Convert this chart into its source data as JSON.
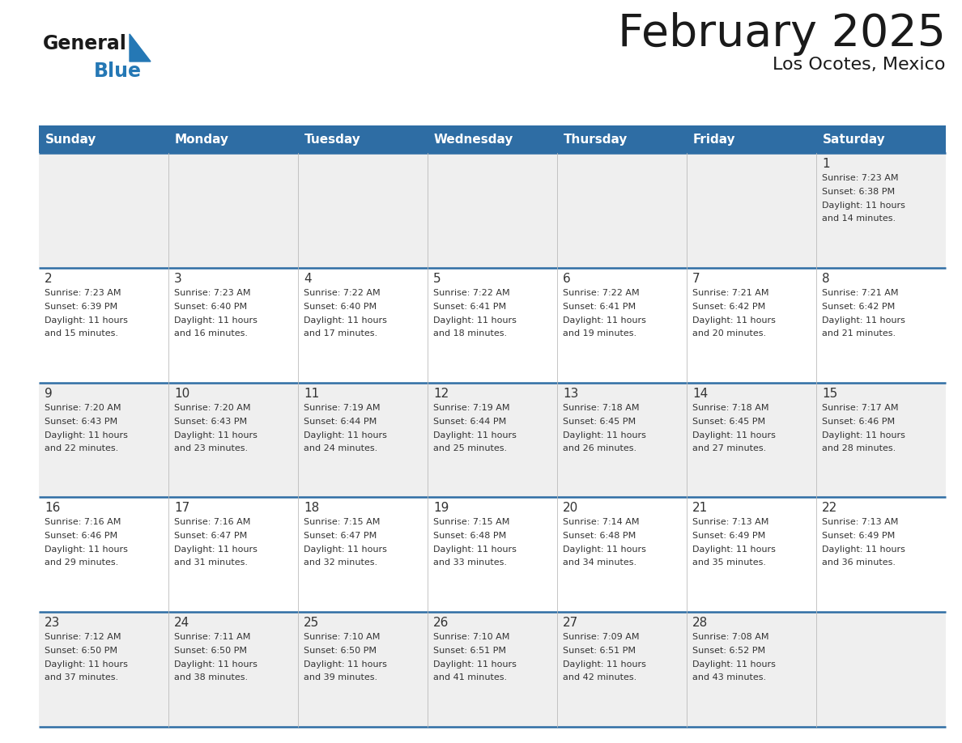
{
  "title": "February 2025",
  "subtitle": "Los Ocotes, Mexico",
  "days_of_week": [
    "Sunday",
    "Monday",
    "Tuesday",
    "Wednesday",
    "Thursday",
    "Friday",
    "Saturday"
  ],
  "header_bg": "#2E6DA4",
  "header_text": "#FFFFFF",
  "cell_bg_light": "#EFEFEF",
  "cell_bg_white": "#FFFFFF",
  "divider_color": "#2E6DA4",
  "text_color": "#333333",
  "title_color": "#1a1a1a",
  "logo_general_color": "#1a1a1a",
  "logo_blue_color": "#2578B5",
  "calendar_data": [
    [
      null,
      null,
      null,
      null,
      null,
      null,
      {
        "day": 1,
        "sunrise": "7:23 AM",
        "sunset": "6:38 PM",
        "daylight": "11 hours and 14 minutes."
      }
    ],
    [
      {
        "day": 2,
        "sunrise": "7:23 AM",
        "sunset": "6:39 PM",
        "daylight": "11 hours and 15 minutes."
      },
      {
        "day": 3,
        "sunrise": "7:23 AM",
        "sunset": "6:40 PM",
        "daylight": "11 hours and 16 minutes."
      },
      {
        "day": 4,
        "sunrise": "7:22 AM",
        "sunset": "6:40 PM",
        "daylight": "11 hours and 17 minutes."
      },
      {
        "day": 5,
        "sunrise": "7:22 AM",
        "sunset": "6:41 PM",
        "daylight": "11 hours and 18 minutes."
      },
      {
        "day": 6,
        "sunrise": "7:22 AM",
        "sunset": "6:41 PM",
        "daylight": "11 hours and 19 minutes."
      },
      {
        "day": 7,
        "sunrise": "7:21 AM",
        "sunset": "6:42 PM",
        "daylight": "11 hours and 20 minutes."
      },
      {
        "day": 8,
        "sunrise": "7:21 AM",
        "sunset": "6:42 PM",
        "daylight": "11 hours and 21 minutes."
      }
    ],
    [
      {
        "day": 9,
        "sunrise": "7:20 AM",
        "sunset": "6:43 PM",
        "daylight": "11 hours and 22 minutes."
      },
      {
        "day": 10,
        "sunrise": "7:20 AM",
        "sunset": "6:43 PM",
        "daylight": "11 hours and 23 minutes."
      },
      {
        "day": 11,
        "sunrise": "7:19 AM",
        "sunset": "6:44 PM",
        "daylight": "11 hours and 24 minutes."
      },
      {
        "day": 12,
        "sunrise": "7:19 AM",
        "sunset": "6:44 PM",
        "daylight": "11 hours and 25 minutes."
      },
      {
        "day": 13,
        "sunrise": "7:18 AM",
        "sunset": "6:45 PM",
        "daylight": "11 hours and 26 minutes."
      },
      {
        "day": 14,
        "sunrise": "7:18 AM",
        "sunset": "6:45 PM",
        "daylight": "11 hours and 27 minutes."
      },
      {
        "day": 15,
        "sunrise": "7:17 AM",
        "sunset": "6:46 PM",
        "daylight": "11 hours and 28 minutes."
      }
    ],
    [
      {
        "day": 16,
        "sunrise": "7:16 AM",
        "sunset": "6:46 PM",
        "daylight": "11 hours and 29 minutes."
      },
      {
        "day": 17,
        "sunrise": "7:16 AM",
        "sunset": "6:47 PM",
        "daylight": "11 hours and 31 minutes."
      },
      {
        "day": 18,
        "sunrise": "7:15 AM",
        "sunset": "6:47 PM",
        "daylight": "11 hours and 32 minutes."
      },
      {
        "day": 19,
        "sunrise": "7:15 AM",
        "sunset": "6:48 PM",
        "daylight": "11 hours and 33 minutes."
      },
      {
        "day": 20,
        "sunrise": "7:14 AM",
        "sunset": "6:48 PM",
        "daylight": "11 hours and 34 minutes."
      },
      {
        "day": 21,
        "sunrise": "7:13 AM",
        "sunset": "6:49 PM",
        "daylight": "11 hours and 35 minutes."
      },
      {
        "day": 22,
        "sunrise": "7:13 AM",
        "sunset": "6:49 PM",
        "daylight": "11 hours and 36 minutes."
      }
    ],
    [
      {
        "day": 23,
        "sunrise": "7:12 AM",
        "sunset": "6:50 PM",
        "daylight": "11 hours and 37 minutes."
      },
      {
        "day": 24,
        "sunrise": "7:11 AM",
        "sunset": "6:50 PM",
        "daylight": "11 hours and 38 minutes."
      },
      {
        "day": 25,
        "sunrise": "7:10 AM",
        "sunset": "6:50 PM",
        "daylight": "11 hours and 39 minutes."
      },
      {
        "day": 26,
        "sunrise": "7:10 AM",
        "sunset": "6:51 PM",
        "daylight": "11 hours and 41 minutes."
      },
      {
        "day": 27,
        "sunrise": "7:09 AM",
        "sunset": "6:51 PM",
        "daylight": "11 hours and 42 minutes."
      },
      {
        "day": 28,
        "sunrise": "7:08 AM",
        "sunset": "6:52 PM",
        "daylight": "11 hours and 43 minutes."
      },
      null
    ]
  ]
}
